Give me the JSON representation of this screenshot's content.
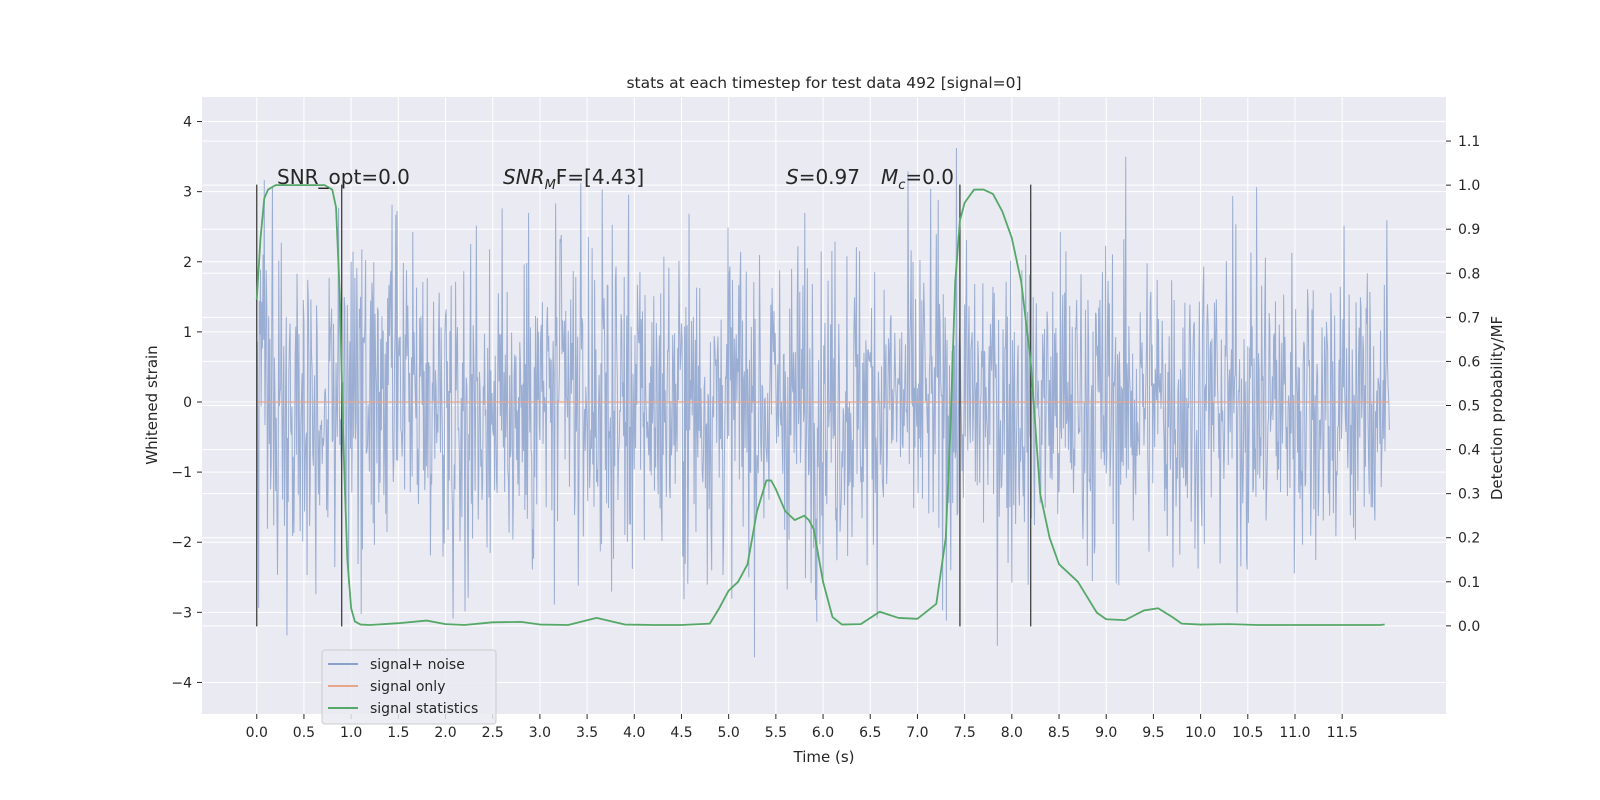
{
  "chart_data": {
    "type": "line",
    "title": "stats at each timestep for test data 492 [signal=0]",
    "xlabel": "Time (s)",
    "ylabel": "Whitened strain",
    "y2label": "Detection probability/MF",
    "xlim": [
      -0.58,
      12.6
    ],
    "ylim": [
      -4.45,
      4.35
    ],
    "y2lim": [
      -0.2,
      1.2
    ],
    "grid": true,
    "legend_position": "lower-left",
    "x_ticks": [
      0.0,
      0.5,
      1.0,
      1.5,
      2.0,
      2.5,
      3.0,
      3.5,
      4.0,
      4.5,
      5.0,
      5.5,
      6.0,
      6.5,
      7.0,
      7.5,
      8.0,
      8.5,
      9.0,
      9.5,
      10.0,
      10.5,
      11.0,
      11.5
    ],
    "x_tick_labels": [
      "0.0",
      "0.5",
      "1.0",
      "1.5",
      "2.0",
      "2.5",
      "3.0",
      "3.5",
      "4.0",
      "4.5",
      "5.0",
      "5.5",
      "6.0",
      "6.5",
      "7.0",
      "7.5",
      "8.0",
      "8.5",
      "9.0",
      "9.5",
      "10.0",
      "10.5",
      "11.0",
      "11.5"
    ],
    "y_ticks": [
      -4,
      -3,
      -2,
      -1,
      0,
      1,
      2,
      3,
      4
    ],
    "y_tick_labels": [
      "−4",
      "−3",
      "−2",
      "−1",
      "0",
      "1",
      "2",
      "3",
      "4"
    ],
    "y2_ticks": [
      0.0,
      0.1,
      0.2,
      0.3,
      0.4,
      0.5,
      0.6,
      0.7,
      0.8,
      0.9,
      1.0,
      1.1
    ],
    "y2_tick_labels": [
      "0.0",
      "0.1",
      "0.2",
      "0.3",
      "0.4",
      "0.5",
      "0.6",
      "0.7",
      "0.8",
      "0.9",
      "1.0",
      "1.1"
    ],
    "annotations": {
      "snr_opt": "SNR_opt=0.0",
      "snr_mf_base": "SNR",
      "snr_mf_sub": "M",
      "snr_mf_rest": "F=[4.43]",
      "s_italic": "S",
      "s_rest": "=0.97",
      "mc_base": "M",
      "mc_sub": "c",
      "mc_rest": "=0.0"
    },
    "legend": [
      {
        "label": "signal+ noise",
        "color": "#8ca2cc"
      },
      {
        "label": "signal only",
        "color": "#e8a58a"
      },
      {
        "label": "signal statistics",
        "color": "#55a868"
      }
    ],
    "noise_series": {
      "name": "signal+ noise",
      "color": "#8ca2cc",
      "x_range": [
        0.0,
        12.0
      ],
      "samples": 1800,
      "body_amplitude": 1.3,
      "max_value": 4.0,
      "min_value": -4.1
    },
    "signal_only": {
      "name": "signal only",
      "color": "#e8a58a",
      "x_range": [
        0.0,
        12.0
      ],
      "value": 0.0
    },
    "statistics_series": {
      "name": "signal statistics",
      "color": "#55a868",
      "axis": "y2",
      "x": [
        0.0,
        0.04,
        0.08,
        0.12,
        0.2,
        0.4,
        0.6,
        0.72,
        0.8,
        0.84,
        0.88,
        0.92,
        0.96,
        1.0,
        1.04,
        1.1,
        1.2,
        1.5,
        1.8,
        2.0,
        2.2,
        2.5,
        2.8,
        3.0,
        3.3,
        3.6,
        3.9,
        4.2,
        4.5,
        4.8,
        4.9,
        5.0,
        5.1,
        5.2,
        5.3,
        5.4,
        5.45,
        5.5,
        5.6,
        5.7,
        5.8,
        5.85,
        5.9,
        6.0,
        6.1,
        6.2,
        6.4,
        6.6,
        6.8,
        7.0,
        7.2,
        7.3,
        7.35,
        7.4,
        7.45,
        7.5,
        7.6,
        7.7,
        7.8,
        7.9,
        8.0,
        8.1,
        8.2,
        8.3,
        8.4,
        8.5,
        8.6,
        8.7,
        8.8,
        8.9,
        9.0,
        9.2,
        9.4,
        9.55,
        9.7,
        9.8,
        10.0,
        10.3,
        10.6,
        11.0,
        11.5,
        11.9,
        11.95
      ],
      "values": [
        0.74,
        0.88,
        0.97,
        0.99,
        1.0,
        1.0,
        1.0,
        1.0,
        0.99,
        0.95,
        0.75,
        0.4,
        0.15,
        0.04,
        0.01,
        0.003,
        0.002,
        0.006,
        0.012,
        0.004,
        0.002,
        0.008,
        0.009,
        0.003,
        0.002,
        0.018,
        0.003,
        0.002,
        0.002,
        0.005,
        0.04,
        0.08,
        0.1,
        0.14,
        0.26,
        0.33,
        0.33,
        0.31,
        0.26,
        0.24,
        0.25,
        0.24,
        0.22,
        0.1,
        0.02,
        0.003,
        0.004,
        0.032,
        0.018,
        0.016,
        0.05,
        0.2,
        0.45,
        0.78,
        0.92,
        0.96,
        0.99,
        0.99,
        0.98,
        0.94,
        0.88,
        0.78,
        0.6,
        0.3,
        0.2,
        0.14,
        0.12,
        0.1,
        0.065,
        0.03,
        0.015,
        0.013,
        0.035,
        0.04,
        0.02,
        0.005,
        0.003,
        0.004,
        0.002,
        0.002,
        0.002,
        0.002,
        0.003
      ]
    },
    "vertical_markers": [
      {
        "x": 0.0,
        "ymin": -3.2,
        "ymax": 3.1
      },
      {
        "x": 0.9,
        "ymin": -3.2,
        "ymax": 3.1
      },
      {
        "x": 7.45,
        "ymin": -3.2,
        "ymax": 3.1
      },
      {
        "x": 8.2,
        "ymin": -3.2,
        "ymax": 3.1
      }
    ],
    "colors": {
      "plot_background": "#eaeaf2",
      "grid": "#ffffff",
      "marker": "#404040",
      "text": "#262626"
    }
  }
}
